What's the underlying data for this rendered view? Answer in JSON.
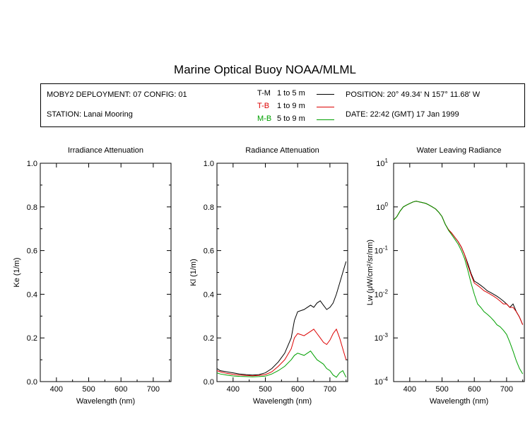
{
  "header": {
    "title": "Marine Optical Buoy NOAA/MLML",
    "deployment": "MOBY2 DEPLOYMENT: 07 CONFIG: 01",
    "station": "STATION: Lanai Mooring",
    "position": "POSITION: 20° 49.34' N   157° 11.68' W",
    "date": "DATE: 22:42 (GMT) 17 Jan 1999",
    "legend": [
      {
        "tag": "T-M",
        "range": "1 to 5  m",
        "color": "#000000"
      },
      {
        "tag": "T-B",
        "range": "1 to 9  m",
        "color": "#dd0000"
      },
      {
        "tag": "M-B",
        "range": "5 to 9  m",
        "color": "#00a000"
      }
    ]
  },
  "chart_data": [
    {
      "type": "line",
      "title": "Irradiance Attenuation",
      "xlabel": "Wavelength (nm)",
      "ylabel": "Ke  (1/m)",
      "xlim": [
        350,
        755
      ],
      "ylim": [
        0,
        1.0
      ],
      "xticks": [
        "400",
        "500",
        "600",
        "700"
      ],
      "yticks": [
        "0.0",
        "0.2",
        "0.4",
        "0.6",
        "0.8",
        "1.0"
      ],
      "series": []
    },
    {
      "type": "line",
      "title": "Radiance Attenuation",
      "xlabel": "Wavelength (nm)",
      "ylabel": "Kl  (1/m)",
      "xlim": [
        350,
        755
      ],
      "ylim": [
        0,
        1.0
      ],
      "xticks": [
        "400",
        "500",
        "600",
        "700"
      ],
      "yticks": [
        "0.0",
        "0.2",
        "0.4",
        "0.6",
        "0.8",
        "1.0"
      ],
      "series": [
        {
          "name": "T-M",
          "color": "#000000",
          "x": [
            350,
            360,
            380,
            400,
            420,
            440,
            460,
            480,
            500,
            520,
            540,
            560,
            580,
            590,
            600,
            620,
            640,
            650,
            660,
            670,
            680,
            690,
            700,
            710,
            720,
            730,
            740,
            750
          ],
          "y": [
            0.06,
            0.05,
            0.045,
            0.04,
            0.035,
            0.032,
            0.03,
            0.032,
            0.04,
            0.06,
            0.09,
            0.13,
            0.2,
            0.28,
            0.32,
            0.33,
            0.35,
            0.34,
            0.36,
            0.37,
            0.35,
            0.33,
            0.34,
            0.36,
            0.4,
            0.45,
            0.5,
            0.55
          ]
        },
        {
          "name": "T-B",
          "color": "#dd0000",
          "x": [
            350,
            360,
            380,
            400,
            420,
            440,
            460,
            480,
            500,
            520,
            540,
            560,
            580,
            590,
            600,
            620,
            640,
            650,
            660,
            670,
            680,
            690,
            700,
            710,
            720,
            730,
            740,
            750
          ],
          "y": [
            0.05,
            0.045,
            0.038,
            0.033,
            0.03,
            0.028,
            0.027,
            0.028,
            0.032,
            0.045,
            0.07,
            0.1,
            0.15,
            0.2,
            0.22,
            0.21,
            0.23,
            0.24,
            0.22,
            0.2,
            0.18,
            0.17,
            0.19,
            0.22,
            0.24,
            0.2,
            0.15,
            0.1
          ]
        },
        {
          "name": "M-B",
          "color": "#00a000",
          "x": [
            350,
            360,
            380,
            400,
            420,
            440,
            460,
            480,
            500,
            520,
            540,
            560,
            580,
            590,
            600,
            620,
            640,
            650,
            660,
            670,
            680,
            690,
            700,
            710,
            720,
            730,
            740,
            750
          ],
          "y": [
            0.04,
            0.035,
            0.03,
            0.026,
            0.024,
            0.023,
            0.022,
            0.023,
            0.025,
            0.035,
            0.05,
            0.07,
            0.1,
            0.12,
            0.13,
            0.12,
            0.14,
            0.12,
            0.1,
            0.09,
            0.08,
            0.06,
            0.05,
            0.03,
            0.02,
            0.04,
            0.05,
            0.02
          ]
        }
      ]
    },
    {
      "type": "line",
      "title": "Water Leaving Radiance",
      "xlabel": "Wavelength (nm)",
      "ylabel": "Lw  (μW/cm²/sr/nm)",
      "xlim": [
        350,
        755
      ],
      "ylim": [
        0.0001,
        10
      ],
      "yscale": "log",
      "xticks": [
        "400",
        "500",
        "600",
        "700"
      ],
      "yticks": [
        "10^-4",
        "10^-3",
        "10^-2",
        "10^-1",
        "10^0",
        "10^1"
      ],
      "series": [
        {
          "name": "T-M",
          "color": "#000000",
          "x": [
            350,
            360,
            370,
            380,
            390,
            400,
            410,
            420,
            430,
            440,
            450,
            460,
            470,
            480,
            490,
            500,
            510,
            520,
            530,
            540,
            550,
            560,
            570,
            580,
            590,
            600,
            610,
            620,
            630,
            640,
            650,
            660,
            670,
            680,
            690,
            700,
            710,
            720,
            730,
            740,
            750
          ],
          "y": [
            0.5,
            0.6,
            0.8,
            1.0,
            1.1,
            1.2,
            1.3,
            1.35,
            1.3,
            1.25,
            1.2,
            1.1,
            1.0,
            0.9,
            0.75,
            0.6,
            0.4,
            0.3,
            0.25,
            0.2,
            0.16,
            0.12,
            0.08,
            0.05,
            0.03,
            0.02,
            0.018,
            0.016,
            0.014,
            0.012,
            0.011,
            0.01,
            0.009,
            0.008,
            0.007,
            0.006,
            0.005,
            0.006,
            0.004,
            0.003,
            0.002
          ]
        },
        {
          "name": "T-B",
          "color": "#dd0000",
          "x": [
            350,
            360,
            370,
            380,
            390,
            400,
            410,
            420,
            430,
            440,
            450,
            460,
            470,
            480,
            490,
            500,
            510,
            520,
            530,
            540,
            550,
            560,
            570,
            580,
            590,
            600,
            610,
            620,
            630,
            640,
            650,
            660,
            670,
            680,
            690,
            700,
            710,
            720,
            730,
            740,
            750
          ],
          "y": [
            0.5,
            0.6,
            0.8,
            1.0,
            1.1,
            1.2,
            1.3,
            1.35,
            1.3,
            1.25,
            1.2,
            1.1,
            1.0,
            0.9,
            0.75,
            0.6,
            0.4,
            0.3,
            0.25,
            0.2,
            0.16,
            0.12,
            0.08,
            0.045,
            0.028,
            0.018,
            0.016,
            0.014,
            0.012,
            0.011,
            0.01,
            0.009,
            0.008,
            0.007,
            0.006,
            0.006,
            0.005,
            0.005,
            0.004,
            0.003,
            0.002
          ]
        },
        {
          "name": "M-B",
          "color": "#00a000",
          "x": [
            350,
            360,
            370,
            380,
            390,
            400,
            410,
            420,
            430,
            440,
            450,
            460,
            470,
            480,
            490,
            500,
            510,
            520,
            530,
            540,
            550,
            560,
            570,
            580,
            590,
            600,
            610,
            620,
            630,
            640,
            650,
            660,
            670,
            680,
            690,
            700,
            710,
            720,
            730,
            740,
            750
          ],
          "y": [
            0.5,
            0.6,
            0.8,
            1.0,
            1.1,
            1.2,
            1.3,
            1.35,
            1.3,
            1.25,
            1.2,
            1.1,
            1.0,
            0.9,
            0.75,
            0.6,
            0.4,
            0.29,
            0.23,
            0.18,
            0.14,
            0.1,
            0.065,
            0.035,
            0.018,
            0.01,
            0.006,
            0.005,
            0.004,
            0.0035,
            0.003,
            0.0025,
            0.002,
            0.0018,
            0.0015,
            0.0012,
            0.0008,
            0.0005,
            0.0003,
            0.0002,
            0.00015
          ]
        }
      ]
    }
  ]
}
